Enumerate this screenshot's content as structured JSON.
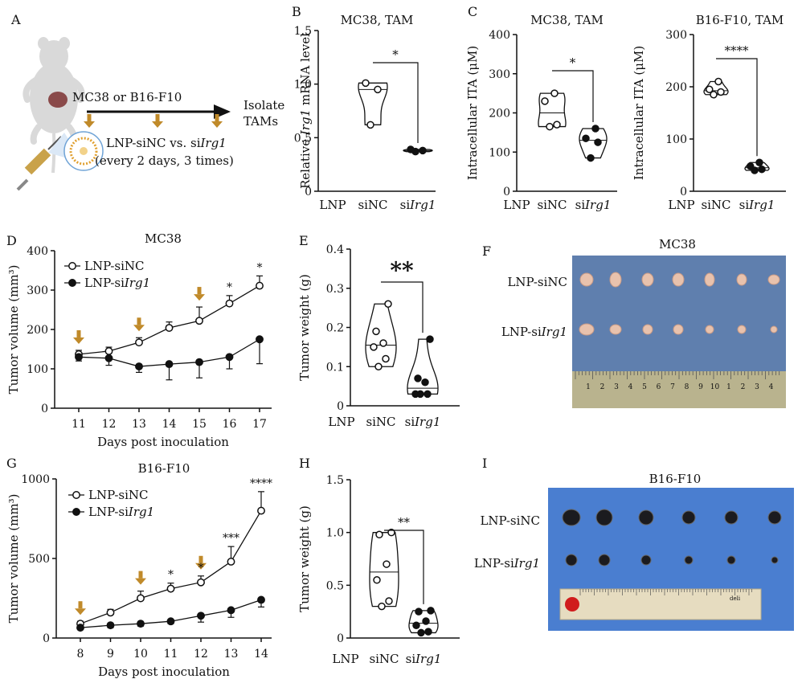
{
  "panel_letters": {
    "A": "A",
    "B": "B",
    "C": "C",
    "D": "D",
    "E": "E",
    "F": "F",
    "G": "G",
    "H": "H",
    "I": "I"
  },
  "schematic": {
    "tumor_label": "MC38 or B16-F10",
    "treatment_line1": "LNP-siNC vs. si",
    "treatment_gene": "Irg1",
    "treatment_line2": "(every 2 days, 3 times)",
    "outcome_line1": "Isolate",
    "outcome_line2": "TAMs"
  },
  "photos": {
    "F": {
      "title": "MC38",
      "row1_label": "LNP-siNC",
      "row2_label_prefix": "LNP-si",
      "row2_label_gene": "Irg1",
      "ruler_numbers": [
        "1",
        "2",
        "3",
        "4",
        "5",
        "6",
        "7",
        "8",
        "9",
        "10",
        "1",
        "2",
        "3",
        "4"
      ]
    },
    "I": {
      "title": "B16-F10",
      "row1_label": "LNP-siNC",
      "row2_label_prefix": "LNP-si",
      "row2_label_gene": "Irg1",
      "ruler_brand": "deli"
    }
  },
  "colors": {
    "arrow": "#c08a2a",
    "mc38_bg": "#5f7fae",
    "b16_bg": "#4a7ed0"
  },
  "chart_data": [
    {
      "id": "B",
      "type": "violin",
      "title": "MC38, TAM",
      "ylabel_prefix": "Relative ",
      "ylabel_gene": "Irg1",
      "ylabel_suffix": " mRNA level",
      "ylim": [
        0,
        1.5
      ],
      "yticks": [
        "0",
        "0.5",
        "1.0",
        "1.5"
      ],
      "x_prefix": "LNP",
      "groups": [
        {
          "name": "siNC",
          "points": [
            0.62,
            0.95,
            1.01
          ]
        },
        {
          "name_prefix": "si",
          "name_gene": "Irg1",
          "points": [
            0.37,
            0.38,
            0.39
          ]
        }
      ],
      "significance": "*"
    },
    {
      "id": "C1",
      "type": "violin",
      "title": "MC38, TAM",
      "ylabel": "Intracellular ITA (μM)",
      "ylim": [
        0,
        400
      ],
      "yticks": [
        "0",
        "100",
        "200",
        "300",
        "400"
      ],
      "x_prefix": "LNP",
      "groups": [
        {
          "name": "siNC",
          "points": [
            165,
            170,
            230,
            250
          ]
        },
        {
          "name_prefix": "si",
          "name_gene": "Irg1",
          "points": [
            85,
            125,
            135,
            160
          ]
        }
      ],
      "significance": "*"
    },
    {
      "id": "C2",
      "type": "violin",
      "title": "B16-F10, TAM",
      "ylabel": "Intracellular ITA (μM)",
      "ylim": [
        0,
        300
      ],
      "yticks": [
        "0",
        "100",
        "200",
        "300"
      ],
      "x_prefix": "LNP",
      "groups": [
        {
          "name": "siNC",
          "points": [
            185,
            190,
            195,
            210
          ]
        },
        {
          "name_prefix": "si",
          "name_gene": "Irg1",
          "points": [
            40,
            42,
            48,
            55
          ]
        }
      ],
      "significance": "****"
    },
    {
      "id": "D",
      "type": "line",
      "title": "MC38",
      "ylabel": "Tumor volume (mm³)",
      "xlabel": "Days post inoculation",
      "x": [
        11,
        12,
        13,
        14,
        15,
        16,
        17
      ],
      "ylim": [
        0,
        400
      ],
      "yticks": [
        "0",
        "100",
        "200",
        "300",
        "400"
      ],
      "series": [
        {
          "name": "LNP-siNC",
          "values": [
            137,
            145,
            167,
            204,
            222,
            266,
            311
          ],
          "errors": [
            10,
            10,
            12,
            15,
            35,
            20,
            25
          ],
          "fill": "open"
        },
        {
          "name_prefix": "LNP-si",
          "name_gene": "Irg1",
          "values": [
            130,
            127,
            106,
            112,
            117,
            130,
            175
          ],
          "errors": [
            10,
            18,
            15,
            40,
            40,
            30,
            62
          ],
          "fill": "filled"
        }
      ],
      "dosing_days": [
        11,
        13,
        15
      ],
      "annotations": [
        {
          "x": 16,
          "label": "*"
        },
        {
          "x": 17,
          "label": "*"
        }
      ]
    },
    {
      "id": "E",
      "type": "violin",
      "title": "",
      "ylabel": "Tumor weight (g)",
      "ylim": [
        0,
        0.4
      ],
      "yticks": [
        "0",
        "0.1",
        "0.2",
        "0.3",
        "0.4"
      ],
      "x_prefix": "LNP",
      "groups": [
        {
          "name": "siNC",
          "points": [
            0.1,
            0.12,
            0.15,
            0.16,
            0.19,
            0.26
          ]
        },
        {
          "name_prefix": "si",
          "name_gene": "Irg1",
          "points": [
            0.03,
            0.03,
            0.03,
            0.06,
            0.07,
            0.17
          ]
        }
      ],
      "significance": "**"
    },
    {
      "id": "G",
      "type": "line",
      "title": "B16-F10",
      "ylabel": "Tumor volume (mm³)",
      "xlabel": "Days post inoculation",
      "x": [
        8,
        9,
        10,
        11,
        12,
        13,
        14
      ],
      "ylim": [
        0,
        1000
      ],
      "yticks": [
        "0",
        "500",
        "1000"
      ],
      "series": [
        {
          "name": "LNP-siNC",
          "values": [
            90,
            160,
            250,
            310,
            350,
            480,
            800
          ],
          "errors": [
            15,
            20,
            45,
            35,
            40,
            95,
            120
          ],
          "fill": "open"
        },
        {
          "name_prefix": "LNP-si",
          "name_gene": "Irg1",
          "values": [
            65,
            80,
            90,
            105,
            140,
            175,
            240
          ],
          "errors": [
            10,
            15,
            15,
            15,
            40,
            45,
            45
          ],
          "fill": "filled"
        }
      ],
      "dosing_days": [
        8,
        10,
        12
      ],
      "annotations": [
        {
          "x": 11,
          "label": "*"
        },
        {
          "x": 12,
          "label": "*"
        },
        {
          "x": 13,
          "label": "***"
        },
        {
          "x": 14,
          "label": "****"
        }
      ]
    },
    {
      "id": "H",
      "type": "violin",
      "title": "",
      "ylabel": "Tumor weight (g)",
      "ylim": [
        0,
        1.5
      ],
      "yticks": [
        "0",
        "0.5",
        "1.0",
        "1.5"
      ],
      "x_prefix": "LNP",
      "groups": [
        {
          "name": "siNC",
          "points": [
            0.3,
            0.35,
            0.55,
            0.7,
            0.98,
            1.0
          ]
        },
        {
          "name_prefix": "si",
          "name_gene": "Irg1",
          "points": [
            0.05,
            0.06,
            0.12,
            0.16,
            0.25,
            0.26
          ]
        }
      ],
      "significance": "**"
    }
  ]
}
